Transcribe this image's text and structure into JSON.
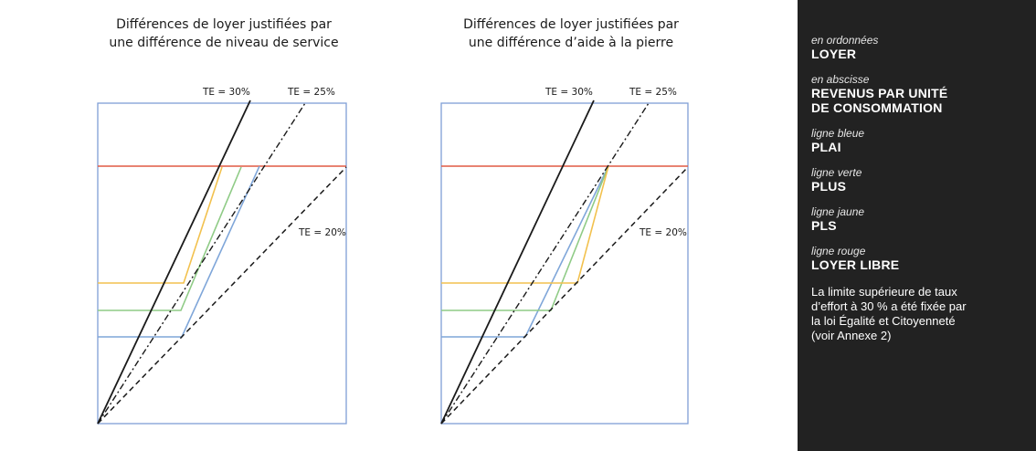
{
  "charts": [
    {
      "title_lines": [
        "Différences de loyer justifiées par",
        "une différence de niveau de service"
      ],
      "labels": [
        "TE = 30%",
        "TE = 25%",
        "TE = 20%"
      ]
    },
    {
      "title_lines": [
        "Différences de loyer justifiées par",
        "une différence d’aide à la pierre"
      ],
      "labels": [
        "TE = 30%",
        "TE = 25%",
        "TE = 20%"
      ]
    }
  ],
  "legend": {
    "entries": [
      {
        "caption": "en ordonnées",
        "value": "LOYER"
      },
      {
        "caption": "en abscisse",
        "value": "REVENUS PAR UNITÉ DE CONSOMMATION"
      },
      {
        "caption": "ligne bleue",
        "value": "PLAI"
      },
      {
        "caption": "ligne verte",
        "value": "PLUS"
      },
      {
        "caption": "ligne jaune",
        "value": "PLS"
      },
      {
        "caption": "ligne rouge",
        "value": "LOYER LIBRE"
      }
    ],
    "note": "La limite supérieure de taux d’effort à 30 % a été fixée par la loi Égalité et Citoyenneté (voir Annexe 2)"
  },
  "colors": {
    "frame": "#7f9fd6",
    "plai": "#7fa6d9",
    "plus": "#8fcb86",
    "pls": "#f2c14e",
    "loyer_libre": "#e05a43",
    "te_lines": "#1a1a1a",
    "sidebar": "#222222"
  }
}
